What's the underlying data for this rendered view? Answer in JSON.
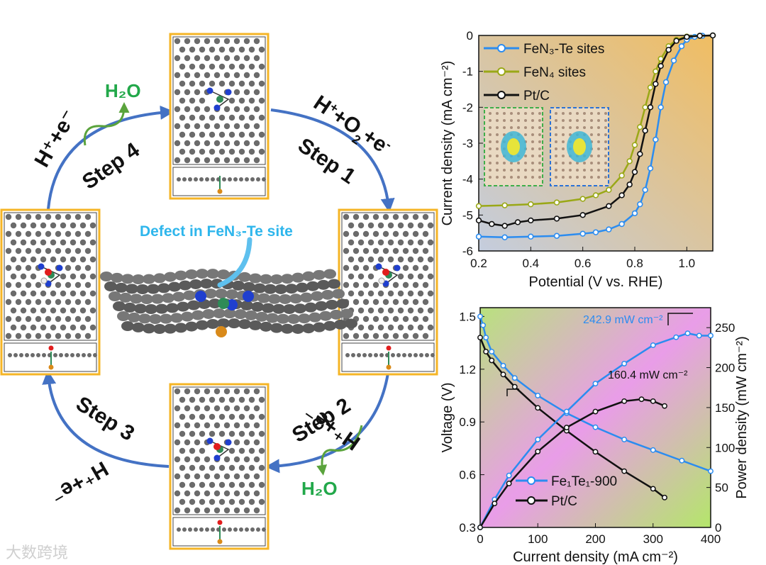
{
  "scheme": {
    "steps": [
      "Step 1",
      "Step 2",
      "Step 3",
      "Step 4"
    ],
    "reactants_step1_html": "H<tspan baseline-shift=\"super\" font-size=\"18\">+</tspan>+O<tspan baseline-shift=\"sub\" font-size=\"18\">2</tspan>+e<tspan baseline-shift=\"super\" font-size=\"18\">-</tspan>",
    "reactant_text": "H⁺+e⁻",
    "product_water": "H₂O",
    "defect_label": "Defect in FeN₃-Te site"
  },
  "colors": {
    "arrow": "#4472c4",
    "frame": "#f5b526",
    "carbon": "#6b6b6b",
    "nitrogen": "#1f3fcf",
    "iron": "#2e8b57",
    "tellurium": "#d98a1a",
    "oxygen": "#e11d1d",
    "water_green": "#22a84a",
    "defect_text": "#2eb6ec"
  },
  "chart_data": [
    {
      "type": "line",
      "xlabel": "Potential (V vs. RHE)",
      "ylabel": "Current density (mA cm⁻²)",
      "xlim": [
        0.2,
        1.1
      ],
      "ylim": [
        -6,
        0
      ],
      "xticks": [
        0.2,
        0.4,
        0.6,
        0.8,
        1.0
      ],
      "yticks": [
        0,
        -1,
        -2,
        -3,
        -4,
        -5,
        -6
      ],
      "legend_position": "top-left",
      "series": [
        {
          "name": "FeN₃-Te sites",
          "color": "#2b8cf0",
          "x": [
            0.2,
            0.3,
            0.4,
            0.5,
            0.6,
            0.65,
            0.7,
            0.75,
            0.8,
            0.82,
            0.84,
            0.86,
            0.88,
            0.9,
            0.92,
            0.95,
            0.98,
            1.0,
            1.03,
            1.06,
            1.1
          ],
          "y": [
            -5.6,
            -5.62,
            -5.6,
            -5.58,
            -5.52,
            -5.48,
            -5.4,
            -5.25,
            -4.95,
            -4.7,
            -4.3,
            -3.7,
            -2.9,
            -2.0,
            -1.3,
            -0.7,
            -0.3,
            -0.12,
            -0.04,
            -0.01,
            0.0
          ]
        },
        {
          "name": "FeN₄ sites",
          "color": "#9aa817",
          "x": [
            0.2,
            0.3,
            0.4,
            0.5,
            0.6,
            0.65,
            0.7,
            0.75,
            0.78,
            0.8,
            0.82,
            0.84,
            0.86,
            0.88,
            0.9,
            0.93,
            0.96,
            1.0,
            1.05,
            1.1
          ],
          "y": [
            -4.75,
            -4.73,
            -4.7,
            -4.65,
            -4.55,
            -4.45,
            -4.3,
            -3.9,
            -3.5,
            -3.05,
            -2.55,
            -2.0,
            -1.45,
            -1.0,
            -0.65,
            -0.3,
            -0.12,
            -0.03,
            -0.01,
            0.0
          ]
        },
        {
          "name": "Pt/C",
          "color": "#111111",
          "x": [
            0.2,
            0.25,
            0.3,
            0.35,
            0.4,
            0.5,
            0.6,
            0.7,
            0.75,
            0.78,
            0.8,
            0.82,
            0.84,
            0.86,
            0.88,
            0.9,
            0.93,
            0.96,
            1.0,
            1.05,
            1.1
          ],
          "y": [
            -5.15,
            -5.25,
            -5.3,
            -5.2,
            -5.15,
            -5.1,
            -5.0,
            -4.75,
            -4.45,
            -4.15,
            -3.8,
            -3.3,
            -2.65,
            -2.0,
            -1.35,
            -0.85,
            -0.4,
            -0.15,
            -0.04,
            -0.01,
            0.0
          ]
        }
      ]
    },
    {
      "type": "line",
      "xlabel": "Current density (mA cm⁻²)",
      "ylabel_left": "Voltage (V)",
      "ylabel_right": "Power density (mW cm⁻²)",
      "xlim": [
        0,
        400
      ],
      "ylim_left": [
        0.3,
        1.55
      ],
      "ylim_right": [
        0,
        275
      ],
      "xticks": [
        0,
        100,
        200,
        300,
        400
      ],
      "yticks_left": [
        0.3,
        0.6,
        0.9,
        1.2,
        1.5
      ],
      "yticks_right": [
        0,
        50,
        100,
        150,
        200,
        250
      ],
      "legend_position": "bottom-left",
      "annotations": [
        "242.9 mW cm⁻²",
        "160.4 mW cm⁻²"
      ],
      "series": [
        {
          "name": "Fe₁Te₁-900",
          "color": "#2b8cf0",
          "axis": "left",
          "x": [
            0,
            5,
            10,
            20,
            40,
            60,
            100,
            150,
            200,
            250,
            300,
            350,
            400
          ],
          "y": [
            1.5,
            1.45,
            1.38,
            1.3,
            1.22,
            1.15,
            1.05,
            0.95,
            0.87,
            0.8,
            0.74,
            0.68,
            0.62
          ]
        },
        {
          "name": "Pt/C",
          "color": "#111111",
          "axis": "left",
          "x": [
            0,
            10,
            20,
            40,
            60,
            100,
            150,
            200,
            250,
            300,
            320
          ],
          "y": [
            1.38,
            1.3,
            1.25,
            1.17,
            1.1,
            0.98,
            0.85,
            0.73,
            0.62,
            0.52,
            0.47
          ]
        },
        {
          "name": "Fe₁Te₁-900",
          "color": "#2b8cf0",
          "axis": "right",
          "x": [
            0,
            25,
            50,
            100,
            150,
            200,
            250,
            300,
            340,
            360,
            380,
            400
          ],
          "y": [
            0,
            35,
            65,
            110,
            145,
            180,
            205,
            228,
            238,
            242.9,
            240,
            240
          ]
        },
        {
          "name": "Pt/C",
          "color": "#111111",
          "axis": "right",
          "x": [
            0,
            25,
            50,
            100,
            150,
            200,
            250,
            280,
            300,
            320
          ],
          "y": [
            0,
            30,
            55,
            95,
            125,
            145,
            158,
            160.4,
            158,
            152
          ]
        }
      ]
    }
  ],
  "watermark": "大数跨境"
}
